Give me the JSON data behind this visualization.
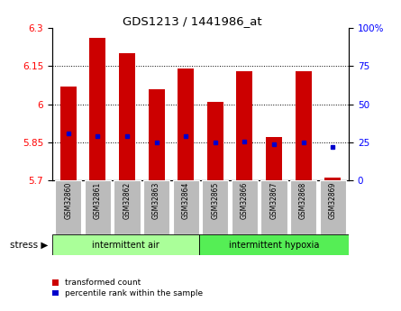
{
  "title": "GDS1213 / 1441986_at",
  "samples": [
    "GSM32860",
    "GSM32861",
    "GSM32862",
    "GSM32863",
    "GSM32864",
    "GSM32865",
    "GSM32866",
    "GSM32867",
    "GSM32868",
    "GSM32869"
  ],
  "bar_values": [
    6.07,
    6.26,
    6.2,
    6.06,
    6.14,
    6.01,
    6.13,
    5.87,
    6.13,
    5.71
  ],
  "bar_bottom": 5.7,
  "percentile_values": [
    5.884,
    5.873,
    5.875,
    5.848,
    5.873,
    5.85,
    5.852,
    5.842,
    5.85,
    5.833
  ],
  "ylim_left": [
    5.7,
    6.3
  ],
  "ylim_right": [
    0,
    100
  ],
  "yticks_left": [
    5.7,
    5.85,
    6.0,
    6.15,
    6.3
  ],
  "yticks_left_labels": [
    "5.7",
    "5.85",
    "6",
    "6.15",
    "6.3"
  ],
  "yticks_right": [
    0,
    25,
    50,
    75,
    100
  ],
  "yticks_right_labels": [
    "0",
    "25",
    "50",
    "75",
    "100%"
  ],
  "gridlines": [
    5.85,
    6.0,
    6.15
  ],
  "groups": [
    {
      "label": "intermittent air",
      "start": 0,
      "end": 4,
      "color": "#aaff99"
    },
    {
      "label": "intermittent hypoxia",
      "start": 5,
      "end": 9,
      "color": "#55ee55"
    }
  ],
  "bar_color": "#cc0000",
  "blue_color": "#0000cc",
  "stress_label": "stress",
  "legend_red": "transformed count",
  "legend_blue": "percentile rank within the sample",
  "sample_label_bg": "#bbbbbb",
  "background_color": "#ffffff"
}
